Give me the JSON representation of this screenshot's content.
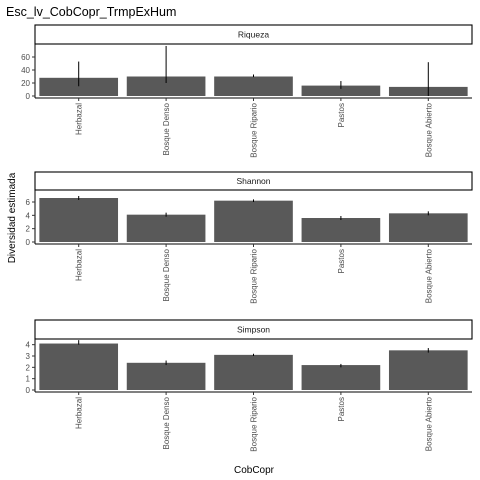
{
  "title": "Esc_lv_CobCopr_TrmpExHum",
  "xlabel": "CobCopr",
  "ylabel": "Diversidad estimada",
  "colors": {
    "bar": "#595959",
    "strip_fill": "#ffffff",
    "strip_border": "#000000",
    "errorbar": "#000000"
  },
  "chart_data": {
    "type": "bar",
    "title": "Esc_lv_CobCopr_TrmpExHum",
    "xlabel": "CobCopr",
    "ylabel": "Diversidad estimada",
    "categories": [
      "Herbazal",
      "Bosque Denso",
      "Bosque Ripario",
      "Pastos",
      "Bosque Abierto"
    ],
    "grid": false,
    "legend": "none",
    "panels": [
      {
        "name": "Riqueza",
        "yticks": [
          0,
          20,
          40,
          60
        ],
        "ylim": [
          0,
          80
        ],
        "values": [
          28,
          30,
          30,
          16,
          14
        ],
        "err_low": [
          15,
          20,
          29,
          11,
          0
        ],
        "err_high": [
          53,
          77,
          33,
          23,
          52
        ]
      },
      {
        "name": "Shannon",
        "yticks": [
          0,
          2,
          4,
          6
        ],
        "ylim": [
          0,
          7.8
        ],
        "values": [
          6.6,
          4.1,
          6.2,
          3.6,
          4.3
        ],
        "err_low": [
          6.3,
          3.8,
          6.0,
          3.3,
          4.0
        ],
        "err_high": [
          6.9,
          4.4,
          6.4,
          3.9,
          4.6
        ]
      },
      {
        "name": "Simpson",
        "yticks": [
          0,
          1,
          2,
          3,
          4
        ],
        "ylim": [
          0,
          4.5
        ],
        "values": [
          4.1,
          2.4,
          3.1,
          2.2,
          3.5
        ],
        "err_low": [
          4.0,
          2.2,
          3.0,
          2.0,
          3.3
        ],
        "err_high": [
          4.4,
          2.6,
          3.2,
          2.3,
          3.7
        ]
      }
    ]
  }
}
